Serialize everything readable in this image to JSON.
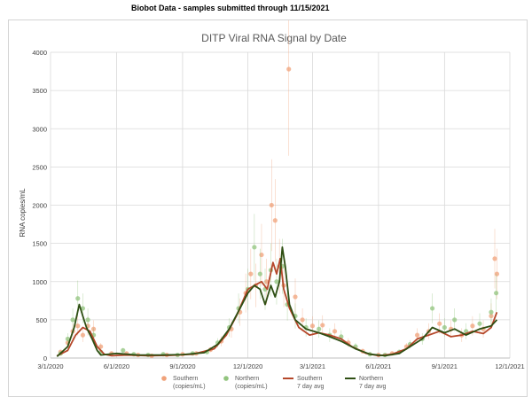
{
  "header": {
    "text": "Biobot Data - samples submitted through 11/15/2021"
  },
  "chart_data": {
    "type": "scatter",
    "title": "DITP Viral RNA Signal by Date",
    "xlabel": "",
    "ylabel": "RNA copies/mL",
    "x_tick_labels": [
      "3/1/2020",
      "6/1/2020",
      "9/1/2020",
      "12/1/2020",
      "3/1/2021",
      "6/1/2021",
      "9/1/2021",
      "12/1/2021"
    ],
    "y_tick_labels": [
      "0",
      "500",
      "1000",
      "1500",
      "2000",
      "2500",
      "3000",
      "3500",
      "4000"
    ],
    "x_range": [
      "3/1/2020",
      "12/1/2021"
    ],
    "ylim": [
      0,
      4000
    ],
    "grid": true,
    "legend_position": "bottom",
    "legend": [
      {
        "key": "southern",
        "kind": "marker",
        "line1": "Southern",
        "line2": "(copies/mL)",
        "color": "#f0a27a"
      },
      {
        "key": "northern",
        "kind": "marker",
        "line1": "Northern",
        "line2": "(copies/mL)",
        "color": "#92c47e"
      },
      {
        "key": "southern_avg",
        "kind": "line",
        "line1": "Southern",
        "line2": "7 day avg",
        "color": "#b5472a"
      },
      {
        "key": "northern_avg",
        "kind": "line",
        "line1": "Northern",
        "line2": "7 day avg",
        "color": "#2f4f14"
      }
    ],
    "series": [
      {
        "name": "Southern (copies/mL)",
        "type": "scatter",
        "color": "#f0a27a",
        "points": [
          [
            "2020-03-15",
            80
          ],
          [
            "2020-03-25",
            200
          ],
          [
            "2020-04-01",
            350
          ],
          [
            "2020-04-08",
            420
          ],
          [
            "2020-04-15",
            300
          ],
          [
            "2020-04-22",
            420
          ],
          [
            "2020-04-30",
            380
          ],
          [
            "2020-05-10",
            150
          ],
          [
            "2020-05-25",
            60
          ],
          [
            "2020-06-15",
            60
          ],
          [
            "2020-07-01",
            40
          ],
          [
            "2020-07-20",
            30
          ],
          [
            "2020-08-10",
            40
          ],
          [
            "2020-09-01",
            50
          ],
          [
            "2020-09-20",
            60
          ],
          [
            "2020-10-10",
            110
          ],
          [
            "2020-10-25",
            220
          ],
          [
            "2020-11-08",
            380
          ],
          [
            "2020-11-20",
            600
          ],
          [
            "2020-11-28",
            850
          ],
          [
            "2020-12-05",
            1100
          ],
          [
            "2020-12-12",
            950
          ],
          [
            "2020-12-20",
            1350
          ],
          [
            "2020-12-27",
            1000
          ],
          [
            "2021-01-03",
            2000
          ],
          [
            "2021-01-08",
            1800
          ],
          [
            "2021-01-14",
            1200
          ],
          [
            "2021-01-20",
            950
          ],
          [
            "2021-01-27",
            3780
          ],
          [
            "2021-02-05",
            800
          ],
          [
            "2021-02-15",
            500
          ],
          [
            "2021-03-01",
            420
          ],
          [
            "2021-03-15",
            430
          ],
          [
            "2021-04-01",
            350
          ],
          [
            "2021-04-20",
            200
          ],
          [
            "2021-05-10",
            90
          ],
          [
            "2021-06-01",
            40
          ],
          [
            "2021-06-20",
            60
          ],
          [
            "2021-07-10",
            150
          ],
          [
            "2021-07-25",
            300
          ],
          [
            "2021-08-10",
            350
          ],
          [
            "2021-08-25",
            450
          ],
          [
            "2021-09-10",
            380
          ],
          [
            "2021-09-25",
            300
          ],
          [
            "2021-10-10",
            420
          ],
          [
            "2021-10-25",
            380
          ],
          [
            "2021-11-05",
            550
          ],
          [
            "2021-11-10",
            1300
          ],
          [
            "2021-11-13",
            1100
          ]
        ]
      },
      {
        "name": "Northern (copies/mL)",
        "type": "scatter",
        "color": "#92c47e",
        "points": [
          [
            "2020-03-15",
            60
          ],
          [
            "2020-03-25",
            250
          ],
          [
            "2020-04-01",
            500
          ],
          [
            "2020-04-08",
            780
          ],
          [
            "2020-04-15",
            650
          ],
          [
            "2020-04-22",
            500
          ],
          [
            "2020-04-30",
            300
          ],
          [
            "2020-05-10",
            80
          ],
          [
            "2020-06-10",
            100
          ],
          [
            "2020-06-25",
            50
          ],
          [
            "2020-07-15",
            40
          ],
          [
            "2020-08-05",
            50
          ],
          [
            "2020-08-25",
            40
          ],
          [
            "2020-09-15",
            60
          ],
          [
            "2020-10-05",
            80
          ],
          [
            "2020-10-20",
            200
          ],
          [
            "2020-11-05",
            400
          ],
          [
            "2020-11-18",
            650
          ],
          [
            "2020-12-01",
            900
          ],
          [
            "2020-12-10",
            1450
          ],
          [
            "2020-12-18",
            1100
          ],
          [
            "2020-12-25",
            900
          ],
          [
            "2021-01-02",
            1150
          ],
          [
            "2021-01-10",
            1000
          ],
          [
            "2021-01-18",
            1200
          ],
          [
            "2021-01-25",
            700
          ],
          [
            "2021-02-05",
            550
          ],
          [
            "2021-02-20",
            400
          ],
          [
            "2021-03-10",
            380
          ],
          [
            "2021-03-25",
            300
          ],
          [
            "2021-04-10",
            280
          ],
          [
            "2021-04-30",
            150
          ],
          [
            "2021-05-20",
            50
          ],
          [
            "2021-06-10",
            40
          ],
          [
            "2021-06-30",
            80
          ],
          [
            "2021-07-15",
            180
          ],
          [
            "2021-08-01",
            250
          ],
          [
            "2021-08-15",
            650
          ],
          [
            "2021-09-01",
            400
          ],
          [
            "2021-09-15",
            500
          ],
          [
            "2021-10-01",
            350
          ],
          [
            "2021-10-20",
            450
          ],
          [
            "2021-11-05",
            600
          ],
          [
            "2021-11-12",
            850
          ]
        ]
      },
      {
        "name": "Southern 7 day avg",
        "type": "line",
        "color": "#b5472a",
        "points": [
          [
            "2020-03-10",
            30
          ],
          [
            "2020-03-25",
            100
          ],
          [
            "2020-04-05",
            300
          ],
          [
            "2020-04-15",
            400
          ],
          [
            "2020-04-25",
            350
          ],
          [
            "2020-05-05",
            150
          ],
          [
            "2020-05-15",
            50
          ],
          [
            "2020-05-25",
            30
          ],
          [
            "2020-06-15",
            40
          ],
          [
            "2020-07-15",
            30
          ],
          [
            "2020-08-15",
            35
          ],
          [
            "2020-09-15",
            50
          ],
          [
            "2020-10-15",
            120
          ],
          [
            "2020-11-01",
            300
          ],
          [
            "2020-11-15",
            550
          ],
          [
            "2020-12-01",
            900
          ],
          [
            "2020-12-10",
            950
          ],
          [
            "2020-12-20",
            1000
          ],
          [
            "2020-12-28",
            900
          ],
          [
            "2021-01-05",
            1250
          ],
          [
            "2021-01-10",
            1100
          ],
          [
            "2021-01-15",
            1300
          ],
          [
            "2021-01-20",
            900
          ],
          [
            "2021-01-28",
            650
          ],
          [
            "2021-02-10",
            400
          ],
          [
            "2021-02-25",
            300
          ],
          [
            "2021-03-10",
            330
          ],
          [
            "2021-03-25",
            300
          ],
          [
            "2021-04-10",
            250
          ],
          [
            "2021-04-25",
            150
          ],
          [
            "2021-05-15",
            60
          ],
          [
            "2021-06-01",
            30
          ],
          [
            "2021-06-20",
            50
          ],
          [
            "2021-07-10",
            120
          ],
          [
            "2021-07-25",
            250
          ],
          [
            "2021-08-10",
            300
          ],
          [
            "2021-08-25",
            350
          ],
          [
            "2021-09-10",
            280
          ],
          [
            "2021-09-25",
            300
          ],
          [
            "2021-10-10",
            350
          ],
          [
            "2021-10-25",
            320
          ],
          [
            "2021-11-05",
            400
          ],
          [
            "2021-11-13",
            600
          ]
        ]
      },
      {
        "name": "Northern 7 day avg",
        "type": "line",
        "color": "#2f4f14",
        "points": [
          [
            "2020-03-10",
            20
          ],
          [
            "2020-03-25",
            150
          ],
          [
            "2020-04-03",
            400
          ],
          [
            "2020-04-10",
            700
          ],
          [
            "2020-04-15",
            550
          ],
          [
            "2020-04-20",
            400
          ],
          [
            "2020-04-28",
            250
          ],
          [
            "2020-05-05",
            100
          ],
          [
            "2020-05-10",
            40
          ],
          [
            "2020-06-01",
            60
          ],
          [
            "2020-07-01",
            40
          ],
          [
            "2020-08-01",
            40
          ],
          [
            "2020-09-01",
            45
          ],
          [
            "2020-10-01",
            70
          ],
          [
            "2020-10-20",
            180
          ],
          [
            "2020-11-05",
            380
          ],
          [
            "2020-11-20",
            650
          ],
          [
            "2020-12-01",
            850
          ],
          [
            "2020-12-10",
            950
          ],
          [
            "2020-12-18",
            900
          ],
          [
            "2020-12-25",
            700
          ],
          [
            "2021-01-02",
            950
          ],
          [
            "2021-01-08",
            800
          ],
          [
            "2021-01-14",
            1000
          ],
          [
            "2021-01-18",
            1450
          ],
          [
            "2021-01-22",
            1200
          ],
          [
            "2021-01-28",
            700
          ],
          [
            "2021-02-05",
            500
          ],
          [
            "2021-02-20",
            380
          ],
          [
            "2021-03-10",
            330
          ],
          [
            "2021-03-25",
            280
          ],
          [
            "2021-04-10",
            220
          ],
          [
            "2021-04-30",
            120
          ],
          [
            "2021-05-20",
            50
          ],
          [
            "2021-06-10",
            30
          ],
          [
            "2021-06-30",
            60
          ],
          [
            "2021-07-15",
            150
          ],
          [
            "2021-08-01",
            250
          ],
          [
            "2021-08-15",
            400
          ],
          [
            "2021-09-01",
            330
          ],
          [
            "2021-09-15",
            380
          ],
          [
            "2021-10-01",
            300
          ],
          [
            "2021-10-20",
            380
          ],
          [
            "2021-11-05",
            420
          ],
          [
            "2021-11-13",
            500
          ]
        ]
      }
    ]
  }
}
